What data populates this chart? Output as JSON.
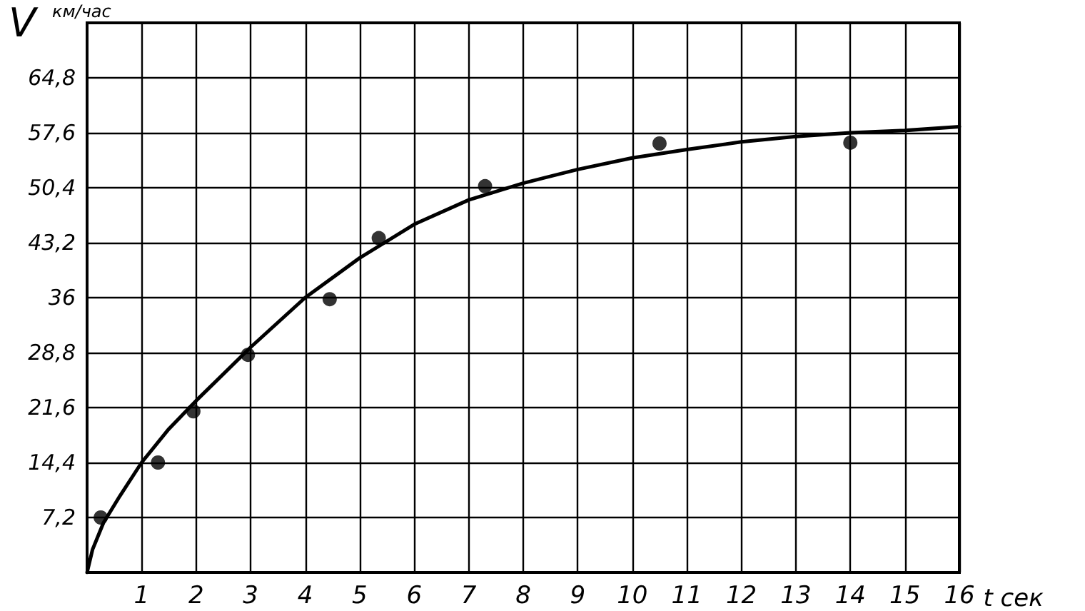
{
  "chart_data": {
    "type": "scatter",
    "xlabel": "t сек",
    "ylabel": "V км/час",
    "xlim": [
      0,
      16
    ],
    "xticks": [
      1,
      2,
      3,
      4,
      5,
      6,
      7,
      8,
      9,
      10,
      11,
      12,
      13,
      14,
      15,
      16
    ],
    "ylim": [
      0,
      72
    ],
    "yticks": [
      {
        "value": 7.2,
        "label": "7,2"
      },
      {
        "value": 14.4,
        "label": "14,4"
      },
      {
        "value": 21.6,
        "label": "21,6"
      },
      {
        "value": 28.8,
        "label": "28,8"
      },
      {
        "value": 36,
        "label": "36"
      },
      {
        "value": 43.2,
        "label": "43,2"
      },
      {
        "value": 50.4,
        "label": "50,4"
      },
      {
        "value": 57.6,
        "label": "57,6"
      },
      {
        "value": 64.8,
        "label": "64,8"
      }
    ],
    "grid": true,
    "marker": "circle",
    "series": [
      {
        "color": "#000000",
        "x": [
          0.25,
          1.3,
          1.95,
          2.95,
          4.45,
          5.35,
          7.3,
          10.5,
          14.0
        ],
        "values": [
          7.2,
          14.4,
          21.1,
          28.5,
          35.8,
          43.8,
          50.6,
          56.2,
          56.3
        ]
      },
      {
        "type": "line",
        "color": "#000000",
        "marker": "none",
        "x": [
          0,
          0.1,
          0.3,
          0.6,
          1,
          1.5,
          2,
          3,
          4,
          5,
          6,
          7,
          8,
          9,
          10,
          11,
          12,
          13,
          14,
          15,
          16
        ],
        "values": [
          0,
          3,
          6.5,
          10,
          14.4,
          18.8,
          22.5,
          29.5,
          36,
          41.2,
          45.6,
          48.8,
          51,
          52.8,
          54.3,
          55.4,
          56.4,
          57.1,
          57.6,
          57.9,
          58.4
        ]
      }
    ]
  }
}
